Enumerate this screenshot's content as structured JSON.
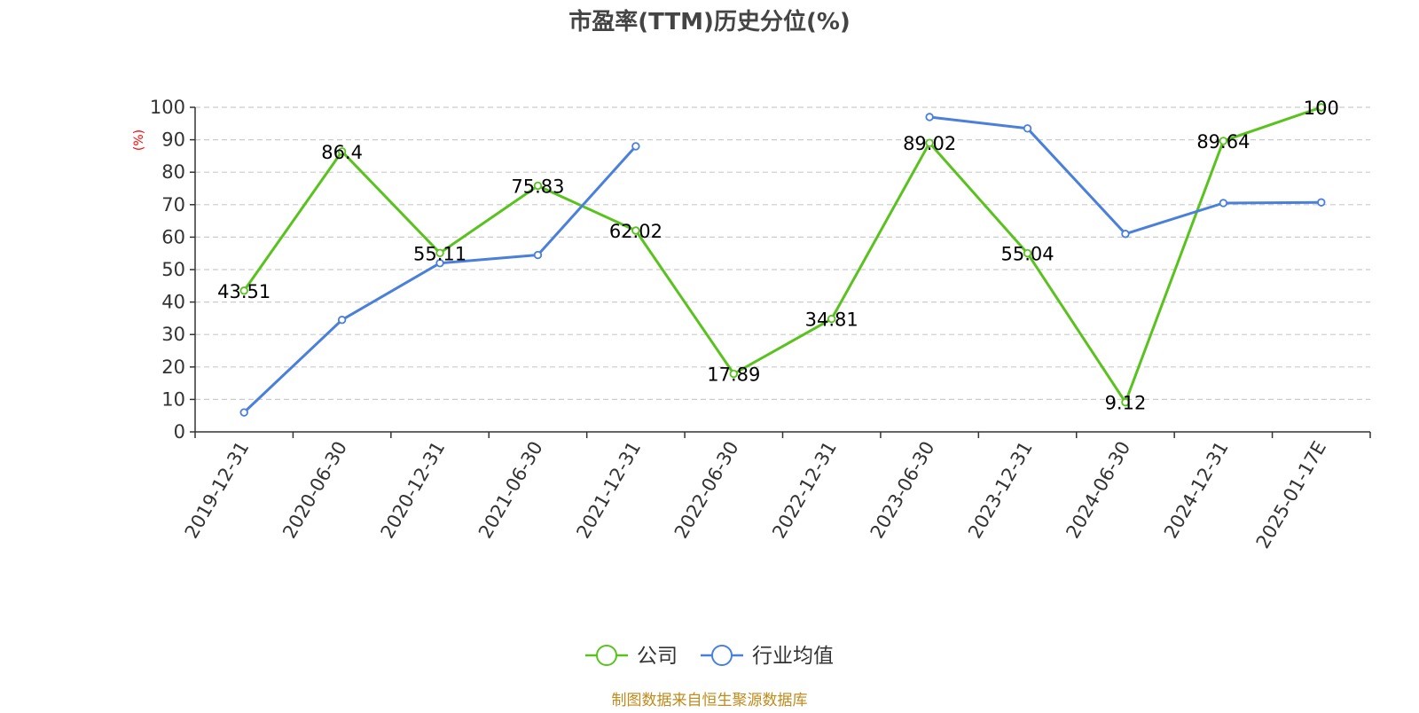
{
  "source_note": "制图数据来自恒生聚源数据库",
  "colors": {
    "company": "#5ac21f",
    "industry": "#4a7fdc",
    "grid": "#cccccc",
    "axis": "#333333",
    "ylabel": "#ff0000",
    "source": "#c08a1c",
    "title": "#444444"
  },
  "chart_data": {
    "type": "line",
    "title": "市盈率(TTM)历史分位(%)",
    "xlabel": "",
    "ylabel": "(%)",
    "ylim": [
      0,
      100
    ],
    "yticks": [
      0,
      10,
      20,
      30,
      40,
      50,
      60,
      70,
      80,
      90,
      100
    ],
    "grid": true,
    "legend_position": "bottom-center",
    "categories": [
      "2019-12-31",
      "2020-06-30",
      "2020-12-31",
      "2021-06-30",
      "2021-12-31",
      "2022-06-30",
      "2022-12-31",
      "2023-06-30",
      "2023-12-31",
      "2024-06-30",
      "2024-12-31",
      "2025-01-17E"
    ],
    "series": [
      {
        "name": "公司",
        "values": [
          43.51,
          86.4,
          55.11,
          75.83,
          62.02,
          17.89,
          34.81,
          89.02,
          55.04,
          9.12,
          89.64,
          100
        ],
        "labels": [
          "43.51",
          "86.4",
          "55.11",
          "75.83",
          "62.02",
          "17.89",
          "34.81",
          "89.02",
          "55.04",
          "9.12",
          "89.64",
          "100"
        ]
      },
      {
        "name": "行业均值",
        "values": [
          6,
          34.5,
          52,
          54.5,
          88,
          null,
          null,
          97,
          93.5,
          61,
          70.5,
          70.7
        ]
      }
    ]
  }
}
